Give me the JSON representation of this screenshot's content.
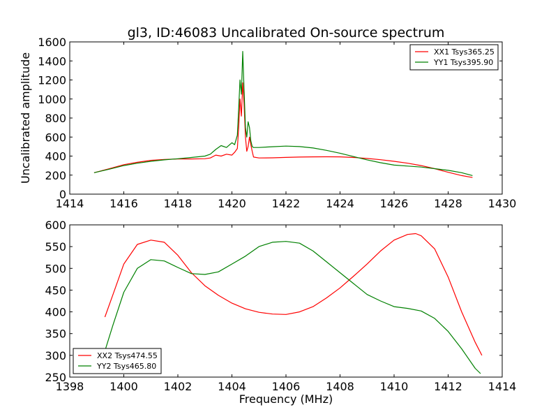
{
  "chart_data": [
    {
      "type": "line",
      "title": "gl3, ID:46083 Uncalibrated On-source spectrum",
      "xlabel": "",
      "ylabel": "Uncalibrated amplitude",
      "xlim": [
        1414,
        1430
      ],
      "ylim": [
        0,
        1600
      ],
      "xticks": [
        1414,
        1416,
        1418,
        1420,
        1422,
        1424,
        1426,
        1428,
        1430
      ],
      "yticks": [
        0,
        200,
        400,
        600,
        800,
        1000,
        1200,
        1400,
        1600
      ],
      "legend_position": "top-right",
      "series": [
        {
          "name": "XX1 Tsys365.25",
          "color": "#ff0000",
          "x": [
            1414.9,
            1415.5,
            1416,
            1416.5,
            1417,
            1417.5,
            1418,
            1418.5,
            1419,
            1419.2,
            1419.4,
            1419.6,
            1419.8,
            1420.0,
            1420.1,
            1420.2,
            1420.25,
            1420.3,
            1420.35,
            1420.4,
            1420.45,
            1420.5,
            1420.55,
            1420.6,
            1420.65,
            1420.7,
            1420.75,
            1420.8,
            1421,
            1421.5,
            1422,
            1422.5,
            1423,
            1423.5,
            1424,
            1424.5,
            1425,
            1425.5,
            1426,
            1426.5,
            1427,
            1427.5,
            1428,
            1428.5,
            1428.9
          ],
          "values": [
            225,
            270,
            310,
            335,
            355,
            365,
            370,
            370,
            372,
            380,
            410,
            400,
            420,
            410,
            440,
            480,
            700,
            1000,
            820,
            1170,
            950,
            600,
            450,
            500,
            600,
            520,
            450,
            390,
            380,
            382,
            386,
            390,
            392,
            393,
            392,
            385,
            375,
            362,
            345,
            325,
            300,
            268,
            230,
            195,
            175
          ]
        },
        {
          "name": "YY1 Tsys395.90",
          "color": "#008000",
          "x": [
            1414.9,
            1415.5,
            1416,
            1416.5,
            1417,
            1417.5,
            1418,
            1418.5,
            1419,
            1419.2,
            1419.4,
            1419.6,
            1419.8,
            1420.0,
            1420.1,
            1420.2,
            1420.25,
            1420.3,
            1420.35,
            1420.4,
            1420.45,
            1420.5,
            1420.55,
            1420.6,
            1420.65,
            1420.7,
            1420.75,
            1420.8,
            1421,
            1421.5,
            1422,
            1422.5,
            1423,
            1423.5,
            1424,
            1424.5,
            1425,
            1425.5,
            1426,
            1426.5,
            1427,
            1427.5,
            1428,
            1428.5,
            1428.9
          ],
          "values": [
            225,
            265,
            300,
            325,
            345,
            360,
            372,
            385,
            400,
            420,
            470,
            510,
            490,
            540,
            520,
            620,
            900,
            1200,
            1050,
            1500,
            1100,
            700,
            600,
            760,
            700,
            560,
            500,
            490,
            490,
            498,
            505,
            500,
            485,
            460,
            430,
            395,
            360,
            330,
            305,
            295,
            285,
            268,
            250,
            225,
            195
          ]
        }
      ]
    },
    {
      "type": "line",
      "title": "",
      "xlabel": "Frequency (MHz)",
      "ylabel": "",
      "xlim": [
        1398,
        1414
      ],
      "ylim": [
        250,
        600
      ],
      "xticks": [
        1398,
        1400,
        1402,
        1404,
        1406,
        1408,
        1410,
        1412,
        1414
      ],
      "yticks": [
        250,
        300,
        350,
        400,
        450,
        500,
        550,
        600
      ],
      "legend_position": "bottom-left",
      "series": [
        {
          "name": "XX2 Tsys474.55",
          "color": "#ff0000",
          "x": [
            1399.3,
            1399.6,
            1400,
            1400.5,
            1401,
            1401.5,
            1402,
            1402.5,
            1403,
            1403.5,
            1404,
            1404.5,
            1405,
            1405.5,
            1406,
            1406.5,
            1407,
            1407.5,
            1408,
            1408.5,
            1409,
            1409.5,
            1410,
            1410.5,
            1410.8,
            1411,
            1411.5,
            1412,
            1412.5,
            1413,
            1413.25
          ],
          "values": [
            388,
            440,
            510,
            555,
            565,
            560,
            530,
            490,
            460,
            438,
            420,
            407,
            399,
            395,
            394,
            400,
            412,
            432,
            455,
            482,
            510,
            540,
            565,
            578,
            580,
            575,
            545,
            480,
            400,
            330,
            300
          ]
        },
        {
          "name": "YY2 Tsys465.80",
          "color": "#008000",
          "x": [
            1399.3,
            1399.6,
            1400,
            1400.5,
            1401,
            1401.5,
            1402,
            1402.5,
            1403,
            1403.5,
            1404,
            1404.5,
            1405,
            1405.5,
            1406,
            1406.5,
            1407,
            1407.5,
            1408,
            1408.5,
            1409,
            1409.5,
            1410,
            1410.5,
            1411,
            1411.5,
            1412,
            1412.5,
            1413,
            1413.2
          ],
          "values": [
            310,
            370,
            445,
            500,
            520,
            517,
            502,
            488,
            486,
            492,
            510,
            528,
            550,
            560,
            562,
            558,
            540,
            515,
            490,
            465,
            440,
            425,
            412,
            408,
            402,
            385,
            355,
            315,
            270,
            258
          ]
        }
      ]
    }
  ]
}
